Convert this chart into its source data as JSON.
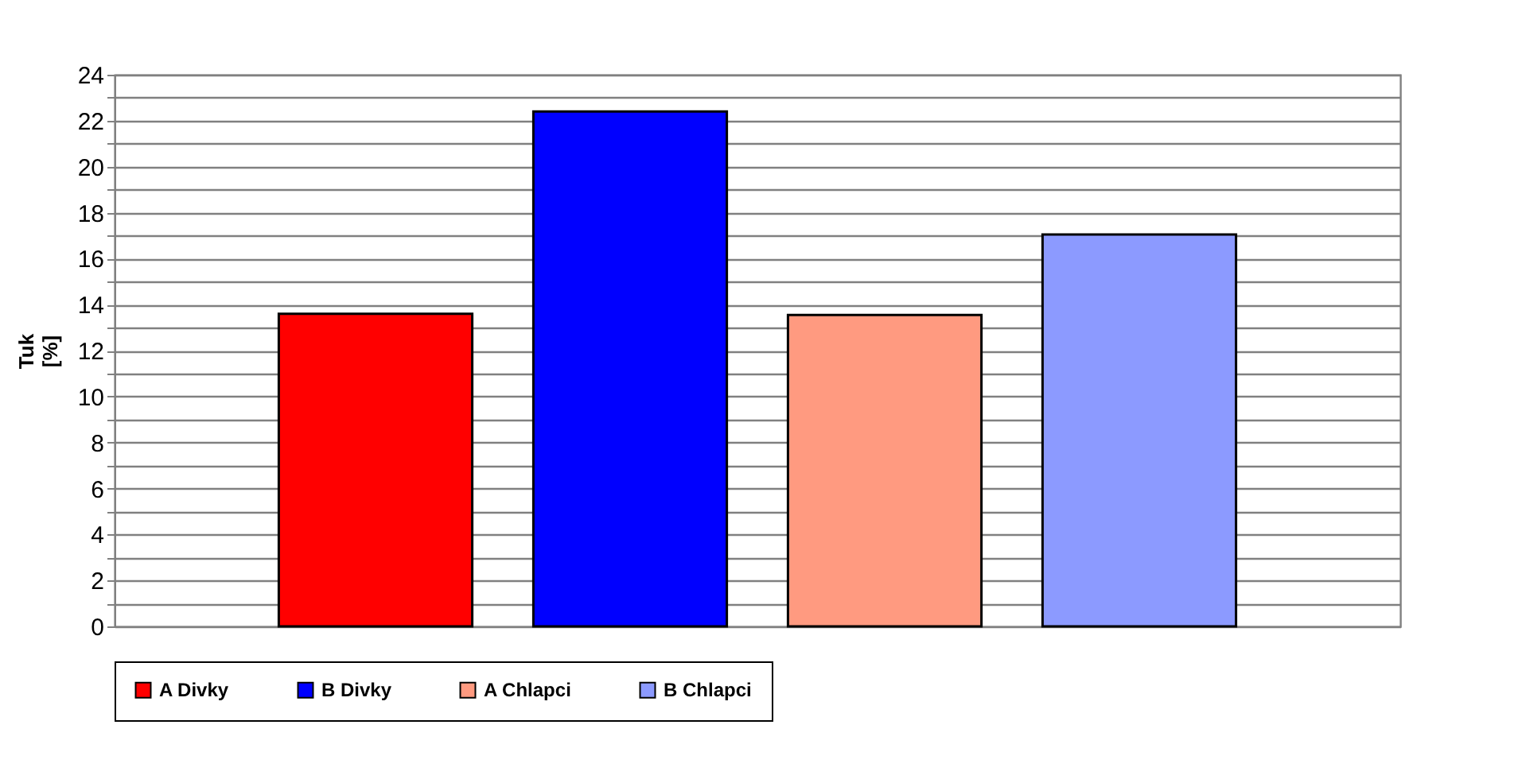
{
  "chart_data": {
    "type": "bar",
    "ylabel": "Tuk\n[%]",
    "categories": [
      null,
      null,
      null,
      null
    ],
    "series": [
      {
        "name": "A Divky",
        "color": "#ff0000",
        "values": [
          13.6,
          null,
          null,
          null
        ]
      },
      {
        "name": "B Divky",
        "color": "#0000ff",
        "values": [
          null,
          22.4,
          null,
          null
        ]
      },
      {
        "name": "A Chlapci",
        "color": "#ff9a80",
        "values": [
          null,
          null,
          13.55,
          null
        ]
      },
      {
        "name": "B Chlapci",
        "color": "#8c9aff",
        "values": [
          null,
          null,
          null,
          17.05
        ]
      }
    ],
    "ylim": [
      0,
      24
    ],
    "yticks": [
      0,
      {
        "value": 1,
        "label": null
      },
      2,
      {
        "value": 3,
        "label": null
      },
      4,
      {
        "value": 5,
        "label": null
      },
      6,
      {
        "value": 7,
        "label": null
      },
      8,
      {
        "value": 9,
        "label": null
      },
      10,
      {
        "value": 11,
        "label": null
      },
      12,
      {
        "value": 13,
        "label": null
      },
      14,
      {
        "value": 15,
        "label": null
      },
      16,
      {
        "value": 17,
        "label": null
      },
      18,
      {
        "value": 19,
        "label": null
      },
      20,
      {
        "value": 21,
        "label": null
      },
      22,
      {
        "value": 23,
        "label": null
      },
      24
    ],
    "grid": "y",
    "legend": "bottom",
    "tick_labels": "y"
  }
}
